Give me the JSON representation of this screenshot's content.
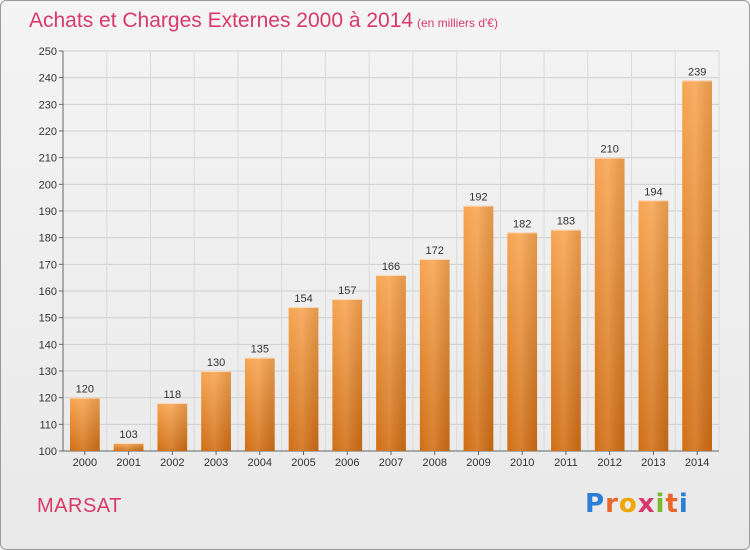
{
  "header": {
    "title": "Achats et Charges Externes 2000 à 2014",
    "unit": "(en milliers d'€)"
  },
  "footer": {
    "commune": "MARSAT",
    "logo": "Proxiti"
  },
  "colors": {
    "accent": "#d8396b",
    "bar_top": "#f7a552",
    "bar_bottom": "#d06e14"
  },
  "chart_data": {
    "type": "bar",
    "title": "Achats et Charges Externes 2000 à 2014",
    "subtitle": "(en milliers d'€)",
    "xlabel": "",
    "ylabel": "",
    "categories": [
      "2000",
      "2001",
      "2002",
      "2003",
      "2004",
      "2005",
      "2006",
      "2007",
      "2008",
      "2009",
      "2010",
      "2011",
      "2012",
      "2013",
      "2014"
    ],
    "values": [
      120,
      103,
      118,
      130,
      135,
      154,
      157,
      166,
      172,
      192,
      182,
      183,
      210,
      194,
      239
    ],
    "ylim": [
      100,
      250
    ],
    "yticks": [
      100,
      110,
      120,
      130,
      140,
      150,
      160,
      170,
      180,
      190,
      200,
      210,
      220,
      230,
      240,
      250
    ],
    "grid": true
  }
}
